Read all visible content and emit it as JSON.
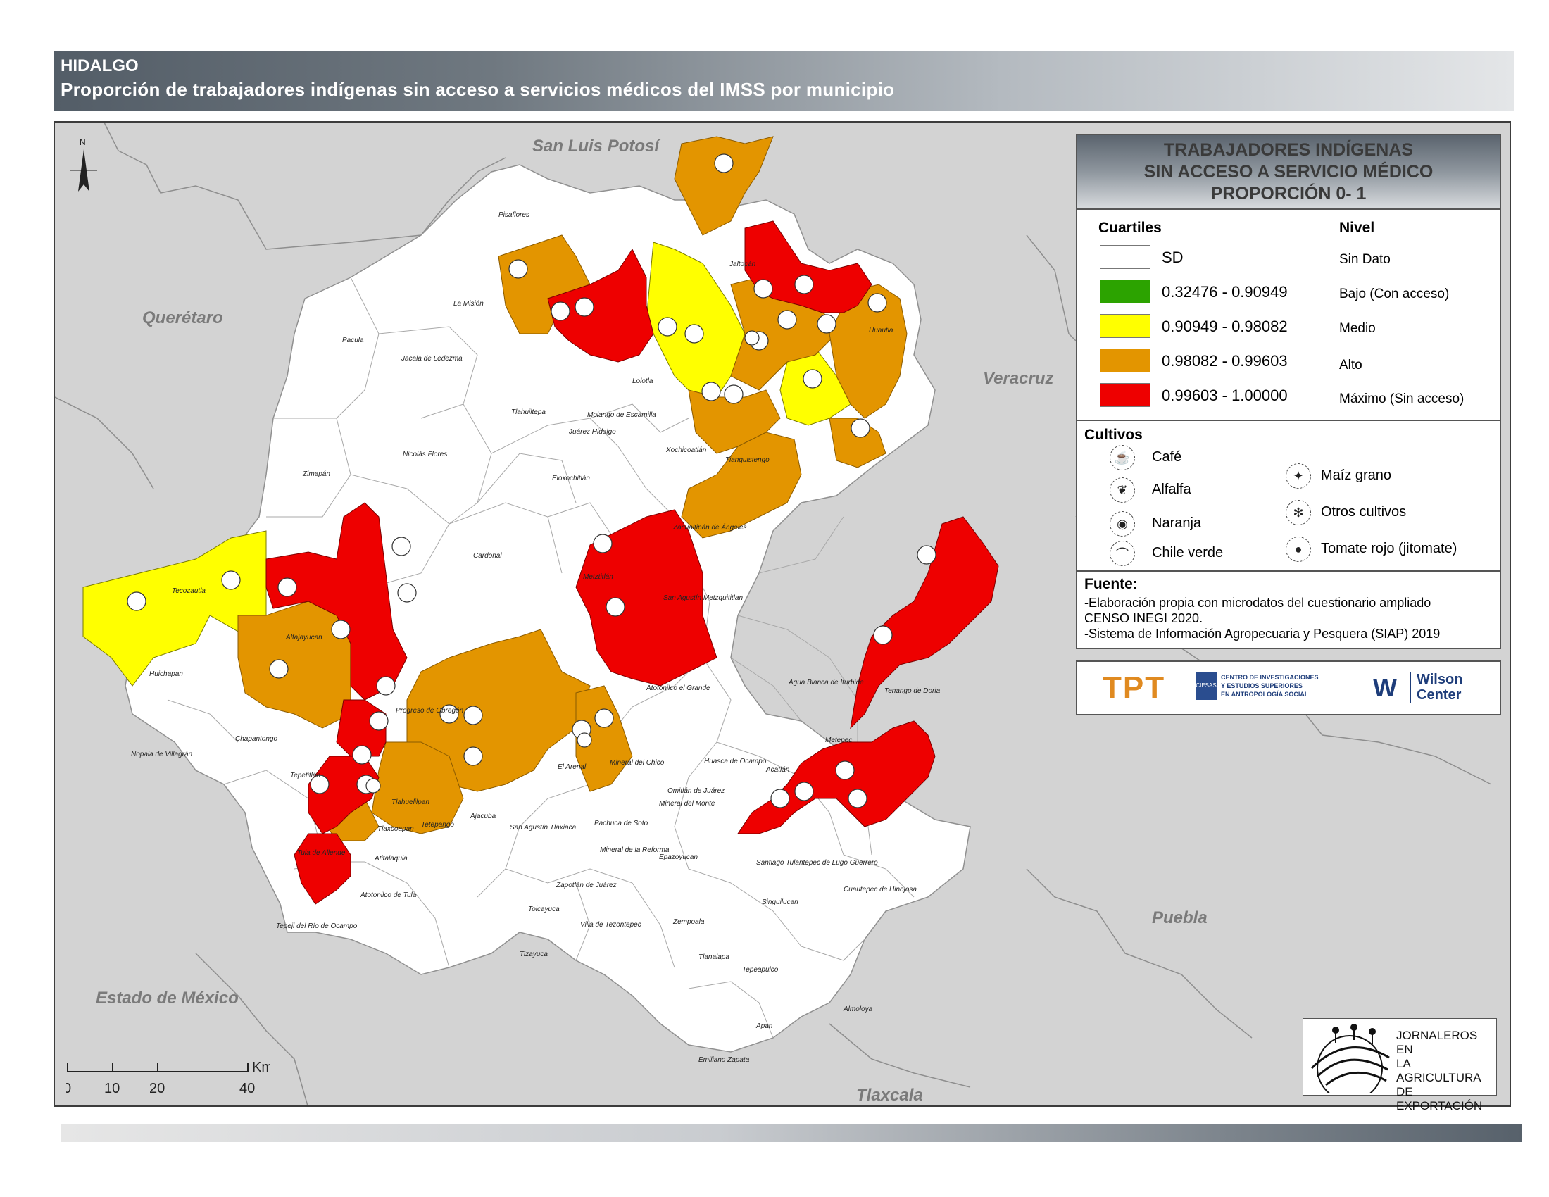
{
  "header": {
    "title": "HIDALGO",
    "subtitle": "Proporción de trabajadores indígenas sin acceso a servicios médicos del IMSS por municipio"
  },
  "legend": {
    "title_lines": [
      "TRABAJADORES INDÍGENAS",
      "SIN ACCESO A SERVICIO MÉDICO",
      "PROPORCIÓN 0- 1"
    ],
    "quartiles_heading": "Cuartiles",
    "level_heading": "Nivel",
    "classes": [
      {
        "range": "SD",
        "level": "Sin Dato",
        "color": "#ffffff"
      },
      {
        "range": "0.32476 - 0.90949",
        "level": "Bajo (Con acceso)",
        "color": "#2ca300"
      },
      {
        "range": "0.90949 - 0.98082",
        "level": "Medio",
        "color": "#ffff00"
      },
      {
        "range": "0.98082 - 0.99603",
        "level": "Alto",
        "color": "#e39500"
      },
      {
        "range": "0.99603 - 1.00000",
        "level": "Máximo (Sin acceso)",
        "color": "#ee0000"
      }
    ],
    "crops_heading": "Cultivos",
    "crops": [
      {
        "name": "Café",
        "icon": "coffee-icon"
      },
      {
        "name": "Alfalfa",
        "icon": "alfalfa-icon"
      },
      {
        "name": "Naranja",
        "icon": "orange-icon"
      },
      {
        "name": "Chile verde",
        "icon": "chili-icon"
      },
      {
        "name": "Maíz grano",
        "icon": "corn-icon"
      },
      {
        "name": "Otros cultivos",
        "icon": "other-crops-icon"
      },
      {
        "name": "Tomate rojo (jitomate)",
        "icon": "tomato-icon"
      }
    ],
    "source_heading": "Fuente:",
    "sources": [
      "-Elaboración propia con microdatos del cuestionario ampliado",
      " CENSO INEGI 2020.",
      "-Sistema de Información Agropecuaria y Pesquera (SIAP) 2019"
    ]
  },
  "logos": {
    "tpt": "TPT",
    "ciesas_lines": [
      "CENTRO DE INVESTIGACIONES",
      "Y ESTUDIOS SUPERIORES",
      "EN ANTROPOLOGÍA SOCIAL"
    ],
    "ciesas_mark": "CIESAS",
    "wilson": [
      "Wilson",
      "Center"
    ],
    "jornaleros": [
      "JORNALEROS EN",
      "LA AGRICULTURA",
      "DE EXPORTACIÓN"
    ]
  },
  "states": {
    "san_luis_potosi": "San Luis Potosí",
    "queretaro": "Querétaro",
    "veracruz": "Veracruz",
    "puebla": "Puebla",
    "estado_de_mexico": "Estado de México",
    "tlaxcala": "Tlaxcala"
  },
  "north": "N",
  "scale": {
    "ticks": [
      "0",
      "10",
      "20",
      "40"
    ],
    "unit": "Km"
  },
  "municipalities": {
    "pisaflores": "Pisaflores",
    "la_mision": "La Misión",
    "pacula": "Pacula",
    "jacala": "Jacala de Ledezma",
    "tlahuiltepa": "Tlahuiltepa",
    "molango": "Molango de Escamilla",
    "juarez_hidalgo": "Juárez Hidalgo",
    "nicolas_flores": "Nicolás Flores",
    "zimapan": "Zimapán",
    "eloxochitlan": "Eloxochitlán",
    "lolotla": "Lolotla",
    "xochicoatlan": "Xochicoatlán",
    "tianguistengo": "Tianguistengo",
    "jaltocan": "Jaltocán",
    "huautla": "Huautla",
    "zacualtipan": "Zacualtipán de Ángeles",
    "cardonal": "Cardonal",
    "metztitlan": "Metztitlán",
    "tecozautla": "Tecozautla",
    "huichapan": "Huichapan",
    "alfajayucan": "Alfajayucan",
    "san_agustin_metzquititlan": "San Agustín Metzquititlan",
    "atotonilco": "Atotonilco el Grande",
    "agua_blanca": "Agua Blanca de Iturbide",
    "tenango": "Tenango de Doria",
    "nopala": "Nopala de Villagrán",
    "chapantongo": "Chapantongo",
    "progreso": "Progreso de Obregón",
    "tepetitlan": "Tepetitlán",
    "el_arenal": "El Arenal",
    "mineral_del_chico": "Mineral del Chico",
    "huasca": "Huasca de Ocampo",
    "metepec": "Metepec",
    "acatlan": "Acatlán",
    "omitlan": "Omitlán de Juárez",
    "mineral_del_monte": "Mineral del Monte",
    "ajacuba": "Ajacuba",
    "san_agustin_tlaxiaca": "San Agustín Tlaxiaca",
    "pachuca": "Pachuca de Soto",
    "tlahuelilpan": "Tlahuelilpan",
    "tlaxcoapan": "Tlaxcoapan",
    "tetepango": "Tetepango",
    "tula": "Tula de Allende",
    "atitalaquia": "Atitalaquia",
    "mineral_reforma": "Mineral de la Reforma",
    "epazoyucan": "Epazoyucan",
    "santiago_tulantepec": "Santiago Tulantepec de Lugo Guerrero",
    "cuautepec": "Cuautepec de Hinojosa",
    "zapotlan": "Zapotlán de Juárez",
    "atotonilco_tula": "Atotonilco de Tula",
    "singuilucan": "Singuilucan",
    "tolcayuca": "Tolcayuca",
    "villa_tezontepec": "Villa de Tezontepec",
    "zempoala": "Zempoala",
    "tepeji": "Tepeji del Río de Ocampo",
    "tizayuca": "Tizayuca",
    "tlanalapa": "Tlanalapa",
    "tepeapulco": "Tepeapulco",
    "almoloya": "Almoloya",
    "apan": "Apan",
    "emiliano_zapata": "Emiliano Zapata"
  }
}
